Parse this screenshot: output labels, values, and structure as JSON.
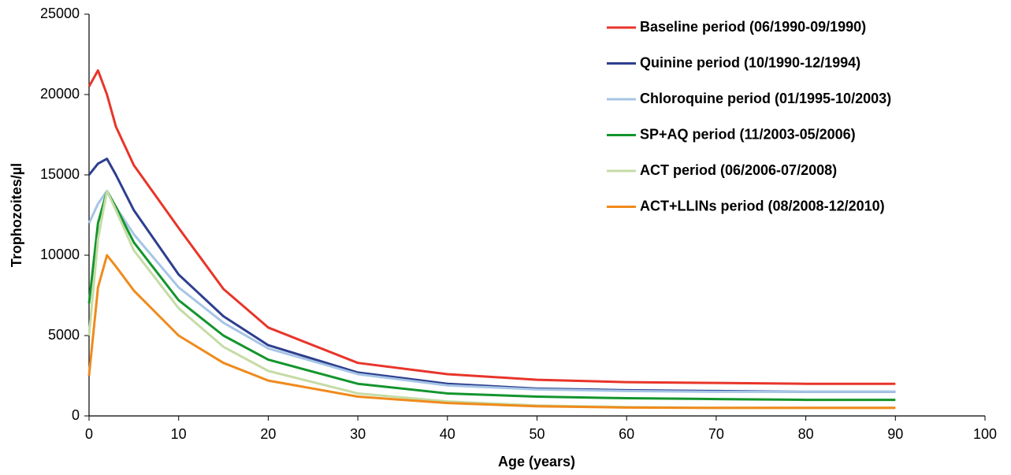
{
  "chart_data": {
    "type": "line",
    "x_label": "Age (years)",
    "y_label": "Trophozoites/µl",
    "x": [
      0,
      1,
      2,
      3,
      5,
      10,
      15,
      20,
      30,
      40,
      50,
      60,
      70,
      80,
      90
    ],
    "series": [
      {
        "name": "Baseline period (06/1990-09/1990)",
        "color": "#e8352a",
        "values": [
          20500,
          21500,
          20000,
          18000,
          15600,
          11700,
          7900,
          5500,
          3300,
          2600,
          2250,
          2100,
          2050,
          2000,
          2000
        ]
      },
      {
        "name": "Quinine period (10/1990-12/1994)",
        "color": "#2e3f8f",
        "values": [
          15000,
          15700,
          16000,
          15000,
          12800,
          8800,
          6200,
          4400,
          2700,
          2000,
          1700,
          1600,
          1550,
          1500,
          1500
        ]
      },
      {
        "name": "Chloroquine period (01/1995-10/2003)",
        "color": "#a6c5e6",
        "values": [
          12000,
          13200,
          14000,
          13000,
          11300,
          8000,
          5800,
          4200,
          2600,
          1900,
          1650,
          1550,
          1500,
          1500,
          1500
        ]
      },
      {
        "name": "SP+AQ period (11/2003-05/2006)",
        "color": "#13952d",
        "values": [
          7000,
          12000,
          14000,
          13000,
          10800,
          7200,
          5000,
          3500,
          2000,
          1400,
          1200,
          1100,
          1050,
          1000,
          1000
        ]
      },
      {
        "name": "ACT period (06/2006-07/2008)",
        "color": "#c5dca5",
        "values": [
          5000,
          11000,
          14000,
          12800,
          10300,
          6700,
          4300,
          2800,
          1400,
          900,
          650,
          550,
          500,
          500,
          500
        ]
      },
      {
        "name": "ACT+LLINs period (08/2008-12/2010)",
        "color": "#f08a1c",
        "values": [
          2500,
          8000,
          10000,
          9300,
          7800,
          5000,
          3300,
          2200,
          1200,
          800,
          600,
          520,
          500,
          500,
          500
        ]
      }
    ],
    "xlim": [
      0,
      100
    ],
    "xticks": [
      0,
      10,
      20,
      30,
      40,
      50,
      60,
      70,
      80,
      90,
      100
    ],
    "ylim": [
      0,
      25000
    ],
    "yticks": [
      0,
      5000,
      10000,
      15000,
      20000,
      25000
    ],
    "grid": false,
    "legend": "upper right"
  }
}
